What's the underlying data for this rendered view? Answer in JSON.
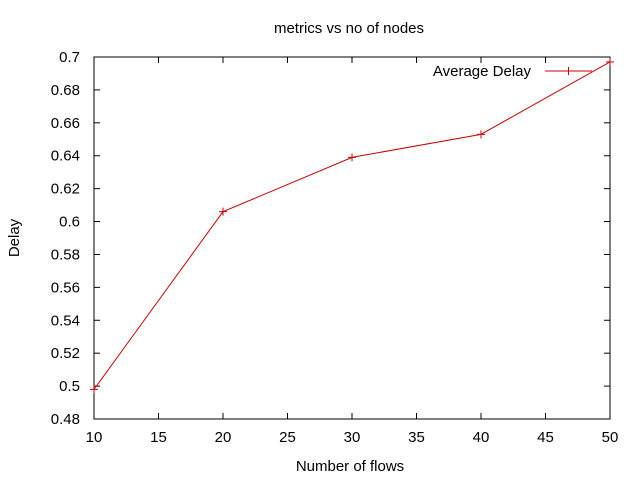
{
  "chart_data": {
    "type": "line",
    "title": "metrics vs no of nodes",
    "xlabel": "Number of flows",
    "ylabel": "Delay",
    "xlim": [
      10,
      50
    ],
    "ylim": [
      0.48,
      0.7
    ],
    "xticks": [
      10,
      15,
      20,
      25,
      30,
      35,
      40,
      45,
      50
    ],
    "yticks": [
      0.48,
      0.5,
      0.52,
      0.54,
      0.56,
      0.58,
      0.6,
      0.62,
      0.64,
      0.66,
      0.68,
      0.7
    ],
    "grid": false,
    "legend_position": "top-right",
    "series": [
      {
        "name": "Average Delay",
        "color": "#cc0000",
        "marker": "plus",
        "x": [
          10,
          20,
          30,
          40,
          50
        ],
        "y": [
          0.498,
          0.606,
          0.639,
          0.653,
          0.697
        ]
      }
    ]
  }
}
